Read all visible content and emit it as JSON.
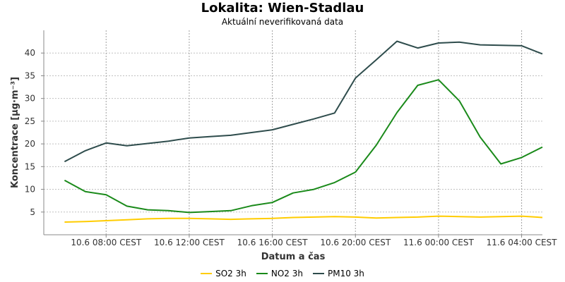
{
  "chart_data": {
    "type": "line",
    "title": "Lokalita: Wien-Stadlau",
    "subtitle": "Aktuální neverifikovaná data",
    "xlabel": "Datum a čas",
    "ylabel": "Koncentrace [µg·m⁻³]",
    "ylim": [
      0,
      45
    ],
    "yticks": [
      5,
      10,
      15,
      20,
      25,
      30,
      35,
      40
    ],
    "xlim": [
      -1,
      23
    ],
    "xticks": [
      {
        "x": 2,
        "label": "10.6 08:00 CEST"
      },
      {
        "x": 6,
        "label": "10.6 12:00 CEST"
      },
      {
        "x": 10,
        "label": "10.6 16:00 CEST"
      },
      {
        "x": 14,
        "label": "10.6 20:00 CEST"
      },
      {
        "x": 18,
        "label": "11.6 00:00 CEST"
      },
      {
        "x": 22,
        "label": "11.6 04:00 CEST"
      }
    ],
    "x": [
      0,
      1,
      2,
      3,
      4,
      5,
      6,
      7,
      8,
      9,
      10,
      11,
      12,
      13,
      14,
      15,
      16,
      17,
      18,
      19,
      20,
      21,
      22,
      23
    ],
    "grid": true,
    "legend_position": "bottom",
    "series": [
      {
        "name": "SO2 3h",
        "color": "#ffcc00",
        "values": [
          2.8,
          2.9,
          3.1,
          3.3,
          3.5,
          3.6,
          3.6,
          3.5,
          3.4,
          3.5,
          3.6,
          3.8,
          3.9,
          4.0,
          3.9,
          3.7,
          3.8,
          3.9,
          4.1,
          4.0,
          3.9,
          4.0,
          4.1,
          3.8
        ]
      },
      {
        "name": "NO2 3h",
        "color": "#1a8a1a",
        "values": [
          12.0,
          9.5,
          8.8,
          6.3,
          5.5,
          5.3,
          4.9,
          5.1,
          5.3,
          6.4,
          7.1,
          9.2,
          10.0,
          11.5,
          13.8,
          19.7,
          26.9,
          32.9,
          34.1,
          29.5,
          21.5,
          15.6,
          17.0,
          19.3
        ]
      },
      {
        "name": "PM10 3h",
        "color": "#2e4c4c",
        "values": [
          16.1,
          18.5,
          20.2,
          19.6,
          20.1,
          20.6,
          21.3,
          21.6,
          21.9,
          22.5,
          23.1,
          24.3,
          25.5,
          26.8,
          34.5,
          38.5,
          42.6,
          41.1,
          42.2,
          42.4,
          41.8,
          41.7,
          41.6,
          39.8
        ]
      }
    ]
  }
}
